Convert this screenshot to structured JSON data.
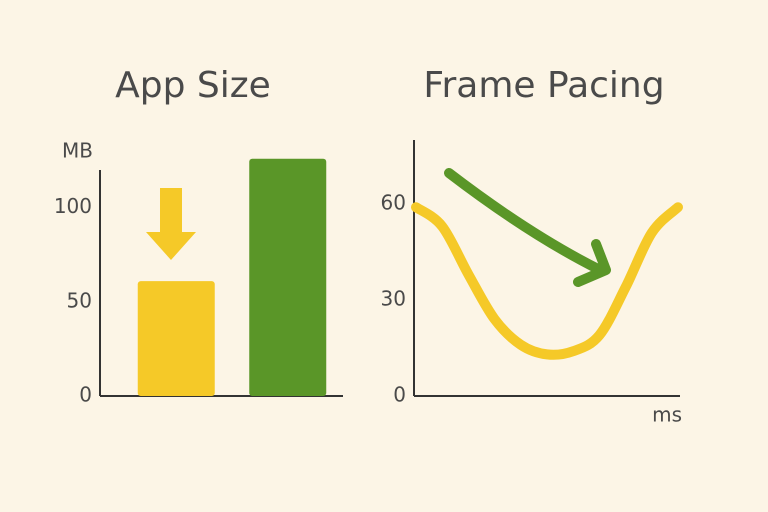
{
  "chart_data": [
    {
      "type": "bar",
      "title": "App Size",
      "y_label": "MB",
      "categories": [
        null,
        null
      ],
      "values": [
        61,
        126
      ],
      "colors": [
        "#f5c928",
        "#5a9628"
      ],
      "ylim": [
        0,
        120
      ],
      "yticks": [
        0,
        50,
        100
      ]
    },
    {
      "type": "line",
      "title": "Frame Pacing",
      "x_label": "ms",
      "x": [
        0,
        1,
        2,
        3,
        4,
        5,
        6,
        7,
        8,
        9,
        10
      ],
      "values": [
        59,
        53,
        38,
        24,
        16,
        13,
        14,
        19,
        34,
        51,
        59
      ],
      "color": "#f5c928",
      "xlim": [
        0,
        10
      ],
      "ylim": [
        0,
        80
      ],
      "yticks": [
        0,
        30,
        60
      ]
    }
  ]
}
